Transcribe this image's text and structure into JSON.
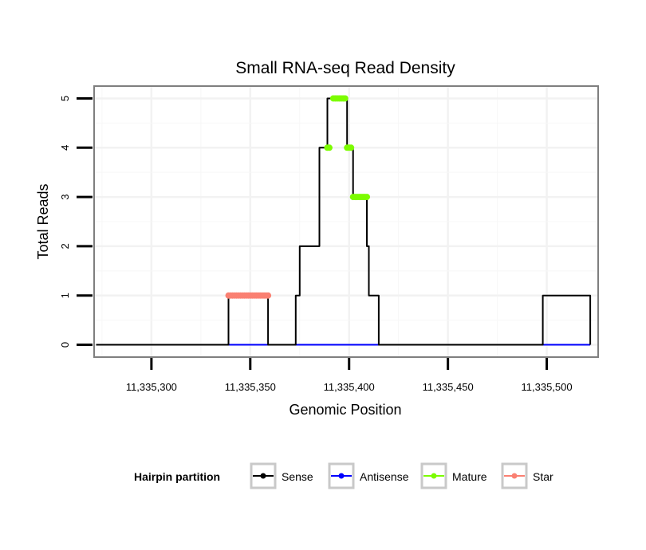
{
  "chart_data": {
    "type": "line",
    "title": "Small RNA-seq Read Density",
    "xlabel": "Genomic Position",
    "ylabel": "Total Reads",
    "xlim": [
      11335271,
      11335526
    ],
    "ylim": [
      -0.25,
      5.25
    ],
    "x_ticks": [
      11335300,
      11335350,
      11335400,
      11335450,
      11335500
    ],
    "x_tick_labels": [
      "11,335,300",
      "11,335,350",
      "11,335,400",
      "11,335,450",
      "11,335,500"
    ],
    "y_ticks": [
      0,
      1,
      2,
      3,
      4,
      5
    ],
    "y_tick_labels": [
      "0",
      "1",
      "2",
      "3",
      "4",
      "5"
    ],
    "grid": true,
    "legend": {
      "title": "Hairpin partition",
      "position": "bottom",
      "entries": [
        {
          "name": "Sense",
          "color": "#000000"
        },
        {
          "name": "Antisense",
          "color": "#0000ff"
        },
        {
          "name": "Mature",
          "color": "#7cfc00"
        },
        {
          "name": "Star",
          "color": "#fa8072"
        }
      ]
    },
    "series": [
      {
        "name": "Sense",
        "color": "#000000",
        "x": [
          11335272,
          11335339,
          11335339,
          11335359,
          11335359,
          11335373,
          11335373,
          11335375,
          11335375,
          11335377,
          11335377,
          11335385,
          11335385,
          11335389,
          11335389,
          11335392,
          11335392,
          11335399,
          11335399,
          11335402,
          11335402,
          11335409,
          11335409,
          11335410,
          11335410,
          11335411,
          11335411,
          11335415,
          11335415,
          11335498,
          11335498,
          11335522,
          11335522
        ],
        "y": [
          0,
          0,
          1,
          1,
          0,
          0,
          1,
          1,
          2,
          2,
          2,
          2,
          4,
          4,
          5,
          5,
          5,
          5,
          4,
          4,
          3,
          3,
          2,
          2,
          1,
          1,
          1,
          1,
          0,
          0,
          1,
          1,
          0
        ]
      },
      {
        "name": "Antisense",
        "color": "#0000ff",
        "x": [
          11335339,
          11335359,
          11335373,
          11335415,
          11335498,
          11335522
        ],
        "y": [
          0,
          0,
          0,
          0,
          0,
          0
        ]
      },
      {
        "name": "Mature",
        "color": "#7cfc00",
        "x": [
          11335389,
          11335390,
          11335392,
          11335393,
          11335394,
          11335395,
          11335396,
          11335397,
          11335398,
          11335399,
          11335400,
          11335401,
          11335402,
          11335403,
          11335404,
          11335405,
          11335406,
          11335407,
          11335408,
          11335409
        ],
        "y": [
          4,
          4,
          5,
          5,
          5,
          5,
          5,
          5,
          5,
          4,
          4,
          4,
          3,
          3,
          3,
          3,
          3,
          3,
          3,
          3
        ]
      },
      {
        "name": "Star",
        "color": "#fa8072",
        "x": [
          11335339,
          11335340,
          11335341,
          11335342,
          11335343,
          11335344,
          11335345,
          11335346,
          11335347,
          11335348,
          11335349,
          11335350,
          11335351,
          11335352,
          11335353,
          11335354,
          11335355,
          11335356,
          11335357,
          11335358,
          11335359
        ],
        "y": [
          1,
          1,
          1,
          1,
          1,
          1,
          1,
          1,
          1,
          1,
          1,
          1,
          1,
          1,
          1,
          1,
          1,
          1,
          1,
          1,
          1
        ]
      }
    ]
  }
}
